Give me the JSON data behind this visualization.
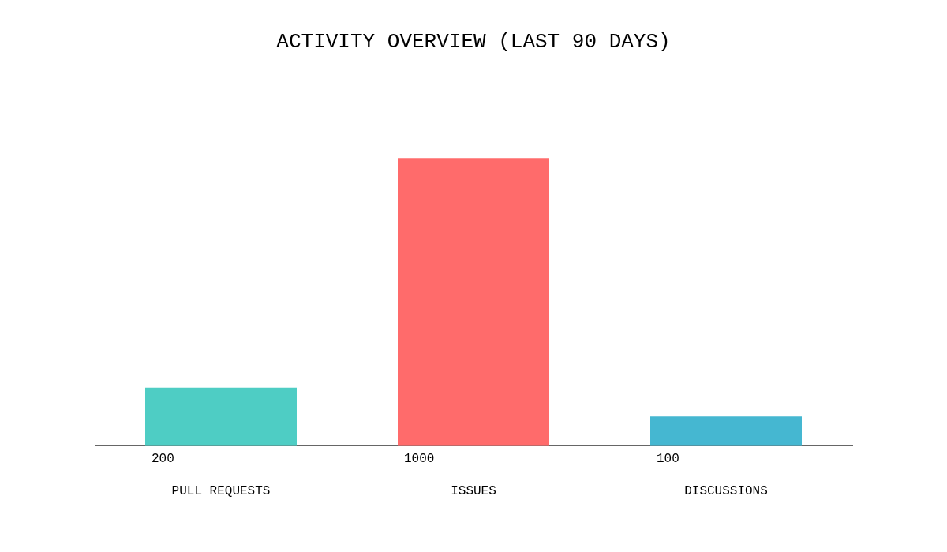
{
  "chart_data": {
    "type": "bar",
    "title": "ACTIVITY OVERVIEW (LAST 90 DAYS)",
    "categories": [
      "PULL REQUESTS",
      "ISSUES",
      "DISCUSSIONS"
    ],
    "values": [
      200,
      1000,
      100
    ],
    "colors": [
      "#4ecdc4",
      "#ff6b6b",
      "#45b7d1"
    ],
    "data_labels": true,
    "grid": false,
    "legend": false,
    "tick_labels": "x"
  }
}
